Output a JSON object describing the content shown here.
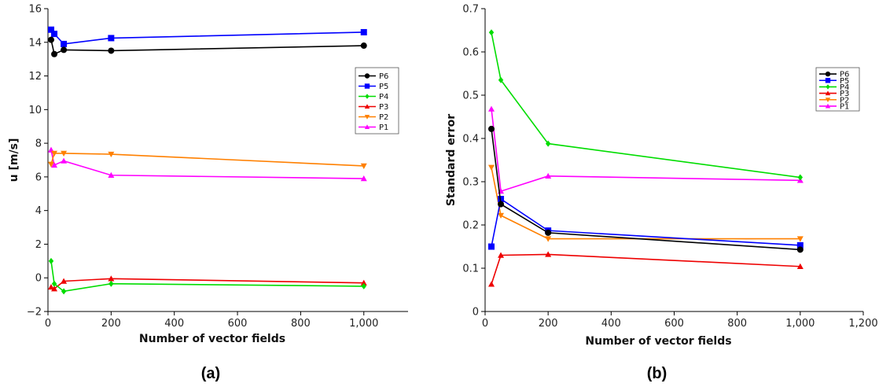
{
  "chart_data": [
    {
      "type": "line",
      "panel_label": "(a)",
      "xlabel": "Number of vector fields",
      "ylabel": "u [m/s]",
      "xlim": [
        0,
        1140
      ],
      "ylim": [
        -2,
        16
      ],
      "xticks": [
        0,
        200,
        400,
        600,
        800,
        1000
      ],
      "xtick_labels": [
        "0",
        "200",
        "400",
        "600",
        "800",
        "1,000"
      ],
      "yticks": [
        -2,
        0,
        2,
        4,
        6,
        8,
        10,
        12,
        14,
        16
      ],
      "ytick_labels": [
        "−2",
        "0",
        "2",
        "4",
        "6",
        "8",
        "10",
        "12",
        "14",
        "16"
      ],
      "legend_position": "right",
      "series": [
        {
          "name": "P6",
          "color": "#000000",
          "marker": "circle",
          "x": [
            10,
            20,
            50,
            200,
            1000
          ],
          "y": [
            14.15,
            13.3,
            13.55,
            13.5,
            13.8
          ]
        },
        {
          "name": "P5",
          "color": "#0000ff",
          "marker": "square",
          "x": [
            10,
            20,
            50,
            200,
            1000
          ],
          "y": [
            14.75,
            14.5,
            13.9,
            14.25,
            14.6
          ]
        },
        {
          "name": "P4",
          "color": "#00dd00",
          "marker": "diamond",
          "x": [
            10,
            20,
            50,
            200,
            1000
          ],
          "y": [
            1.0,
            -0.35,
            -0.8,
            -0.35,
            -0.5
          ]
        },
        {
          "name": "P3",
          "color": "#ee0000",
          "marker": "triangle-up",
          "x": [
            10,
            20,
            50,
            200,
            1000
          ],
          "y": [
            -0.55,
            -0.65,
            -0.2,
            -0.05,
            -0.3
          ]
        },
        {
          "name": "P2",
          "color": "#ff8000",
          "marker": "triangle-down",
          "x": [
            10,
            20,
            50,
            200,
            1000
          ],
          "y": [
            6.75,
            7.4,
            7.4,
            7.35,
            6.65
          ]
        },
        {
          "name": "P1",
          "color": "#ff00ff",
          "marker": "triangle-up",
          "x": [
            10,
            20,
            50,
            200,
            1000
          ],
          "y": [
            7.6,
            6.7,
            6.95,
            6.1,
            5.9
          ]
        }
      ]
    },
    {
      "type": "line",
      "panel_label": "(b)",
      "xlabel": "Number of vector fields",
      "ylabel": "Standard error",
      "xlim": [
        0,
        1200
      ],
      "ylim": [
        0,
        0.7
      ],
      "xticks": [
        0,
        200,
        400,
        600,
        800,
        1000,
        1200
      ],
      "xtick_labels": [
        "0",
        "200",
        "400",
        "600",
        "800",
        "1,000",
        "1,200"
      ],
      "yticks": [
        0,
        0.1,
        0.2,
        0.3,
        0.4,
        0.5,
        0.6,
        0.7
      ],
      "ytick_labels": [
        "0",
        "0.1",
        "0.2",
        "0.3",
        "0.4",
        "0.5",
        "0.6",
        "0.7"
      ],
      "legend_position": "top-right",
      "series": [
        {
          "name": "P6",
          "color": "#000000",
          "marker": "circle",
          "x": [
            20,
            50,
            200,
            1000
          ],
          "y": [
            0.422,
            0.248,
            0.182,
            0.143
          ]
        },
        {
          "name": "P5",
          "color": "#0000ff",
          "marker": "square",
          "x": [
            20,
            50,
            200,
            1000
          ],
          "y": [
            0.15,
            0.26,
            0.187,
            0.153
          ]
        },
        {
          "name": "P4",
          "color": "#00dd00",
          "marker": "diamond",
          "x": [
            20,
            50,
            200,
            1000
          ],
          "y": [
            0.645,
            0.535,
            0.388,
            0.31
          ]
        },
        {
          "name": "P3",
          "color": "#ee0000",
          "marker": "triangle-up",
          "x": [
            20,
            50,
            200,
            1000
          ],
          "y": [
            0.063,
            0.13,
            0.132,
            0.104
          ]
        },
        {
          "name": "P2",
          "color": "#ff8000",
          "marker": "triangle-down",
          "x": [
            20,
            50,
            200,
            1000
          ],
          "y": [
            0.333,
            0.222,
            0.168,
            0.168
          ]
        },
        {
          "name": "P1",
          "color": "#ff00ff",
          "marker": "triangle-up",
          "x": [
            20,
            50,
            200,
            1000
          ],
          "y": [
            0.468,
            0.278,
            0.313,
            0.303
          ]
        }
      ]
    }
  ]
}
